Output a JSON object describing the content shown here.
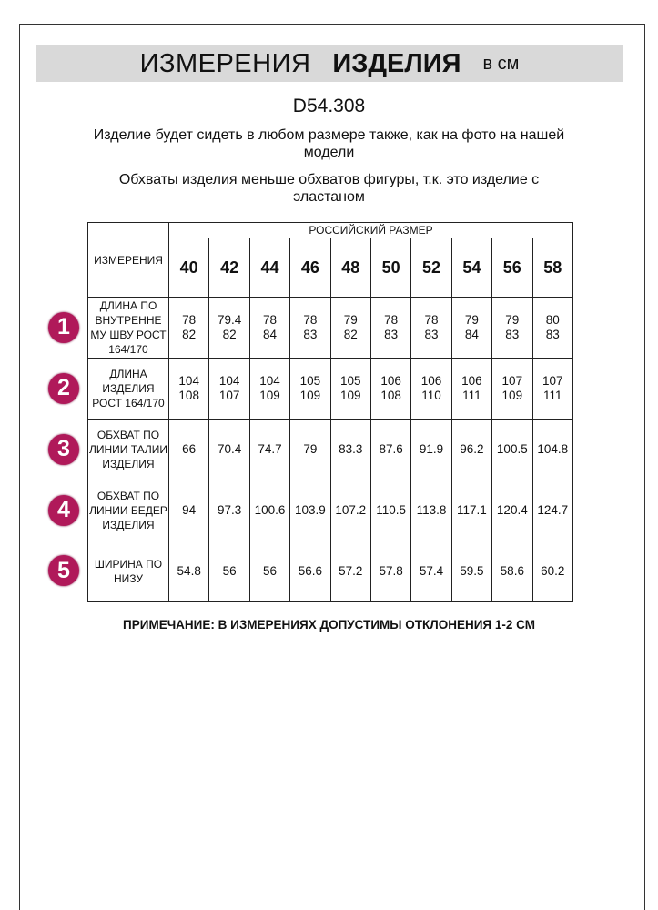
{
  "header": {
    "title_regular": "ИЗМЕРЕНИЯ",
    "title_bold": "ИЗДЕЛИЯ",
    "unit": "в см"
  },
  "article": "D54.308",
  "notes": [
    "Изделие будет сидеть в любом размере также, как на фото на нашей модели",
    "Обхваты изделия меньше обхватов фигуры, т.к. это изделие с эластаном"
  ],
  "table": {
    "measure_header": "ИЗМЕРЕНИЯ",
    "group_header": "РОССИЙСКИЙ РАЗМЕР",
    "sizes": [
      "40",
      "42",
      "44",
      "46",
      "48",
      "50",
      "52",
      "54",
      "56",
      "58"
    ],
    "rows": [
      {
        "badge": "1",
        "label": "ДЛИНА ПО ВНУТРЕННЕ МУ ШВУ РОСТ 164/170",
        "values": [
          "78\n82",
          "79.4\n82",
          "78\n84",
          "78\n83",
          "79\n82",
          "78\n83",
          "78\n83",
          "79\n84",
          "79\n83",
          "80\n83"
        ]
      },
      {
        "badge": "2",
        "label": "ДЛИНА ИЗДЕЛИЯ РОСТ 164/170",
        "values": [
          "104\n108",
          "104\n107",
          "104\n109",
          "105\n109",
          "105\n109",
          "106\n108",
          "106\n110",
          "106\n111",
          "107\n109",
          "107\n111"
        ]
      },
      {
        "badge": "3",
        "label": "ОБХВАТ ПО ЛИНИИ ТАЛИИ ИЗДЕЛИЯ",
        "values": [
          "66",
          "70.4",
          "74.7",
          "79",
          "83.3",
          "87.6",
          "91.9",
          "96.2",
          "100.5",
          "104.8"
        ]
      },
      {
        "badge": "4",
        "label": "ОБХВАТ ПО ЛИНИИ БЕДЕР ИЗДЕЛИЯ",
        "values": [
          "94",
          "97.3",
          "100.6",
          "103.9",
          "107.2",
          "110.5",
          "113.8",
          "117.1",
          "120.4",
          "124.7"
        ]
      },
      {
        "badge": "5",
        "label": "ШИРИНА ПО НИЗУ",
        "values": [
          "54.8",
          "56",
          "56",
          "56.6",
          "57.2",
          "57.8",
          "57.4",
          "59.5",
          "58.6",
          "60.2"
        ]
      }
    ]
  },
  "footnote": "ПРИМЕЧАНИЕ: В ИЗМЕРЕНИЯХ ДОПУСТИМЫ ОТКЛОНЕНИЯ 1-2 СМ",
  "colors": {
    "badge": "#b0195a",
    "band": "#d9d9d9"
  }
}
